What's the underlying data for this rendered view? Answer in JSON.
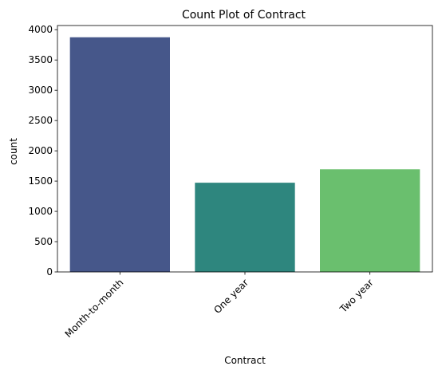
{
  "chart_data": {
    "type": "bar",
    "title": "Count Plot of Contract",
    "xlabel": "Contract",
    "ylabel": "count",
    "categories": [
      "Month-to-month",
      "One year",
      "Two year"
    ],
    "values": [
      3875,
      1473,
      1695
    ],
    "colors": [
      "#450457",
      "#21918c",
      "#5ec962"
    ],
    "bar_colors": [
      "#46578a",
      "#2e867e",
      "#6abf6e"
    ],
    "ylim": [
      0,
      4069
    ],
    "yticks": [
      0,
      500,
      1000,
      1500,
      2000,
      2500,
      3000,
      3500,
      4000
    ],
    "x_tick_rotation": 45,
    "grid": false,
    "legend": "none"
  }
}
